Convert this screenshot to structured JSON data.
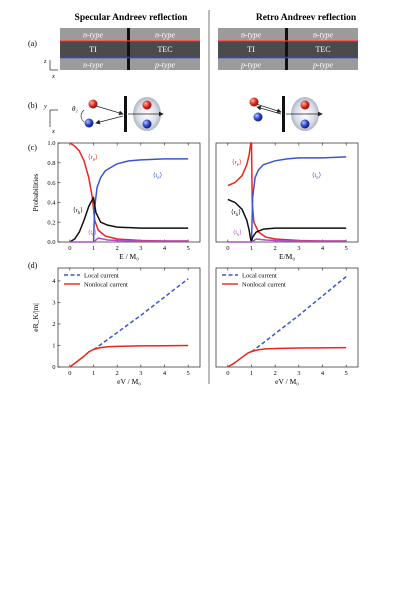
{
  "columns": [
    {
      "title": "Specular Andreev reflection",
      "layers": [
        {
          "left": "n-type",
          "right": "n-type"
        },
        {
          "left": "TI",
          "right": "TEC"
        },
        {
          "left": "n-type",
          "right": "p-type"
        }
      ],
      "theta_label": "θ₁"
    },
    {
      "title": "Retro Andreev reflection",
      "layers": [
        {
          "left": "n-type",
          "right": "n-type"
        },
        {
          "left": "TI",
          "right": "TEC"
        },
        {
          "left": "p-type",
          "right": "p-type"
        }
      ]
    }
  ],
  "panel_labels": [
    "(a)",
    "(b)",
    "(c)",
    "(d)"
  ],
  "axis_letters": {
    "z": "z",
    "x": "x",
    "y": "y"
  },
  "colors": {
    "red_line": "#e02a1e",
    "blue_line": "#2a45c8",
    "layer_gray": "#9b9b9b",
    "layer_dark": "#555555",
    "ti_dark": "#3a3a3a",
    "r_e": "#e8261a",
    "t_e": "#3a55d0",
    "r_h": "#111111",
    "t_h": "#b04fc8"
  },
  "chart_data": [
    {
      "type": "line",
      "panel": "(c) left",
      "xlabel": "E / M₀",
      "ylabel": "Probabilities",
      "xlim": [
        -0.5,
        5.5
      ],
      "ylim": [
        0,
        1
      ],
      "xticks": [
        "0",
        "1",
        "2",
        "3",
        "4",
        "5"
      ],
      "yticks": [
        "0.0",
        "0.2",
        "0.4",
        "0.6",
        "0.8",
        "1.0"
      ],
      "series": [
        {
          "name": "⟨r_e⟩",
          "color": "#e8261a",
          "x": [
            0,
            0.2,
            0.4,
            0.6,
            0.8,
            0.95,
            1.05,
            1.2,
            1.5,
            2,
            3,
            4,
            5
          ],
          "y": [
            1.0,
            0.97,
            0.92,
            0.82,
            0.65,
            0.45,
            0.22,
            0.12,
            0.06,
            0.03,
            0.015,
            0.01,
            0.01
          ]
        },
        {
          "name": "⟨t_e⟩",
          "color": "#3a55d0",
          "x": [
            1.0,
            1.05,
            1.15,
            1.3,
            1.5,
            2,
            2.5,
            3,
            4,
            5
          ],
          "y": [
            0.0,
            0.35,
            0.55,
            0.65,
            0.72,
            0.79,
            0.82,
            0.83,
            0.84,
            0.84
          ]
        },
        {
          "name": "⟨r_h⟩",
          "color": "#111111",
          "x": [
            0,
            0.2,
            0.4,
            0.6,
            0.8,
            1.0,
            1.1,
            1.3,
            1.6,
            2,
            3,
            4,
            5
          ],
          "y": [
            0.0,
            0.03,
            0.1,
            0.22,
            0.36,
            0.45,
            0.3,
            0.2,
            0.17,
            0.15,
            0.14,
            0.14,
            0.14
          ]
        },
        {
          "name": "⟨t_h⟩",
          "color": "#b04fc8",
          "x": [
            0,
            0.5,
            1.0,
            1.2,
            1.6,
            2,
            3,
            4,
            5
          ],
          "y": [
            0.0,
            0.0,
            0.0,
            0.04,
            0.02,
            0.015,
            0.01,
            0.01,
            0.01
          ]
        }
      ]
    },
    {
      "type": "line",
      "panel": "(c) right",
      "xlabel": "E/M₀",
      "ylabel": "",
      "xlim": [
        -0.5,
        5.5
      ],
      "ylim": [
        0,
        1
      ],
      "xticks": [
        "0",
        "1",
        "2",
        "3",
        "4",
        "5"
      ],
      "yticks": [],
      "series": [
        {
          "name": "⟨r_e⟩",
          "color": "#e8261a",
          "x": [
            0,
            0.3,
            0.6,
            0.8,
            0.9,
            0.97,
            1.0,
            1.03,
            1.1,
            1.3,
            1.6,
            2,
            3,
            4,
            5
          ],
          "y": [
            0.57,
            0.6,
            0.67,
            0.78,
            0.88,
            1.0,
            1.0,
            0.4,
            0.2,
            0.1,
            0.05,
            0.03,
            0.015,
            0.01,
            0.01
          ]
        },
        {
          "name": "⟨t_e⟩",
          "color": "#3a55d0",
          "x": [
            1.0,
            1.05,
            1.15,
            1.3,
            1.5,
            2,
            2.5,
            3,
            4,
            5
          ],
          "y": [
            0.0,
            0.45,
            0.65,
            0.73,
            0.78,
            0.82,
            0.84,
            0.85,
            0.85,
            0.86
          ]
        },
        {
          "name": "⟨r_h⟩",
          "color": "#111111",
          "x": [
            0,
            0.3,
            0.6,
            0.8,
            0.9,
            0.97,
            1.0,
            1.05,
            1.2,
            1.5,
            2,
            3,
            4,
            5
          ],
          "y": [
            0.43,
            0.4,
            0.33,
            0.22,
            0.12,
            0.02,
            0.0,
            0.05,
            0.1,
            0.13,
            0.14,
            0.14,
            0.14,
            0.14
          ]
        },
        {
          "name": "⟨t_h⟩",
          "color": "#b04fc8",
          "x": [
            0,
            0.5,
            1.0,
            1.2,
            1.6,
            2,
            3,
            4,
            5
          ],
          "y": [
            0.0,
            0.0,
            0.0,
            0.03,
            0.02,
            0.015,
            0.01,
            0.01,
            0.01
          ]
        }
      ]
    },
    {
      "type": "line",
      "panel": "(d) left",
      "xlabel": "eV / M₀",
      "ylabel": "eR_K/|m|",
      "xlim": [
        -0.5,
        5.5
      ],
      "ylim": [
        0,
        4.6
      ],
      "xticks": [
        "0",
        "1",
        "2",
        "3",
        "4",
        "5"
      ],
      "yticks": [
        "0",
        "1",
        "2",
        "3",
        "4"
      ],
      "legend": [
        "Local current",
        "Nonlocal current"
      ],
      "series": [
        {
          "name": "Local current",
          "color": "#3a55d0",
          "dashed": true,
          "x": [
            1.0,
            2,
            3,
            4,
            5
          ],
          "y": [
            0.8,
            1.6,
            2.4,
            3.25,
            4.1
          ]
        },
        {
          "name": "Nonlocal current",
          "color": "#e8261a",
          "x": [
            0,
            0.3,
            0.6,
            0.8,
            1.0,
            1.3,
            1.6,
            2,
            3,
            4,
            5
          ],
          "y": [
            0.0,
            0.25,
            0.5,
            0.7,
            0.82,
            0.9,
            0.94,
            0.96,
            0.98,
            0.99,
            1.0
          ]
        }
      ]
    },
    {
      "type": "line",
      "panel": "(d) right",
      "xlabel": "eV / M₀",
      "ylabel": "",
      "xlim": [
        -0.5,
        5.5
      ],
      "ylim": [
        0,
        4.6
      ],
      "xticks": [
        "0",
        "1",
        "2",
        "3",
        "4",
        "5"
      ],
      "yticks": [],
      "legend": [
        "Local current",
        "Nonlocal current"
      ],
      "series": [
        {
          "name": "Local current",
          "color": "#3a55d0",
          "dashed": true,
          "x": [
            1.0,
            2,
            3,
            4,
            5
          ],
          "y": [
            0.7,
            1.55,
            2.4,
            3.3,
            4.2
          ]
        },
        {
          "name": "Nonlocal current",
          "color": "#e8261a",
          "x": [
            0,
            0.3,
            0.6,
            0.85,
            1.0,
            1.3,
            1.6,
            2,
            3,
            4,
            5
          ],
          "y": [
            0.0,
            0.2,
            0.45,
            0.65,
            0.72,
            0.8,
            0.84,
            0.86,
            0.88,
            0.89,
            0.9
          ]
        }
      ]
    }
  ]
}
